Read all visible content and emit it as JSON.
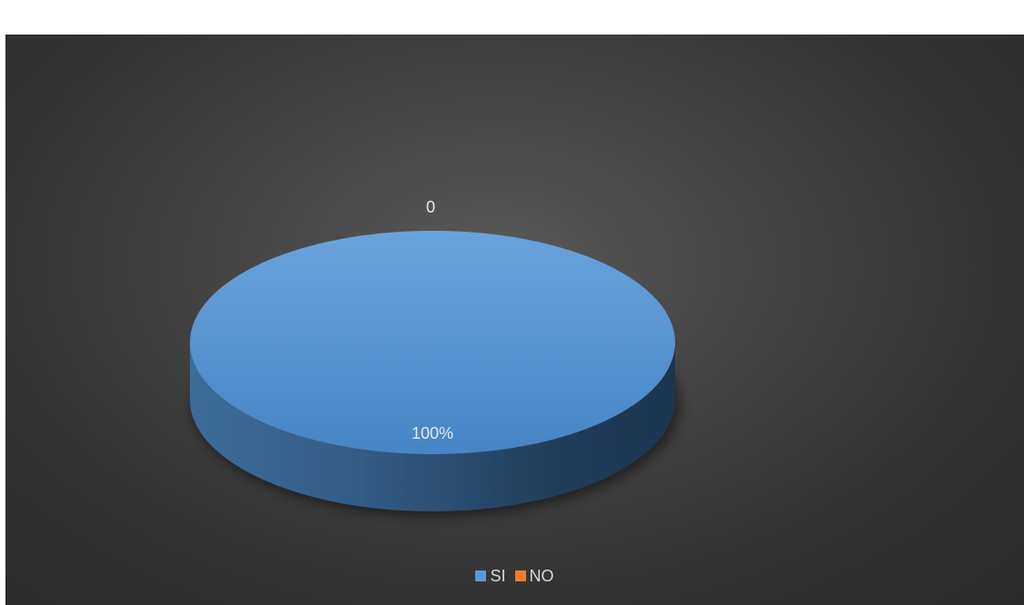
{
  "chart_data": {
    "type": "pie",
    "style": "3d",
    "categories": [
      "SI",
      "NO"
    ],
    "values": [
      1,
      0
    ],
    "data_labels": [
      "100%",
      "0"
    ],
    "colors": [
      "#5b9bd5",
      "#ed7d31"
    ],
    "legend_position": "bottom"
  },
  "legend": {
    "items": [
      {
        "label": "SI",
        "color": "#5b9bd5"
      },
      {
        "label": "NO",
        "color": "#ed7d31"
      }
    ]
  }
}
